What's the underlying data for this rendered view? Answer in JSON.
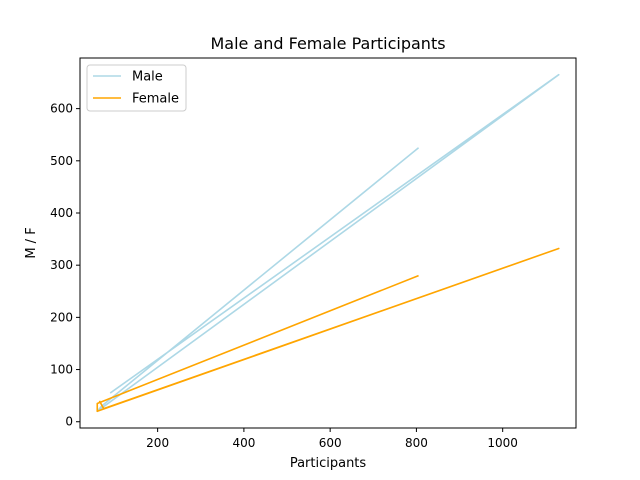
{
  "chart_data": {
    "type": "line",
    "title": "Male and Female Participants",
    "xlabel": "Participants",
    "ylabel": "M / F",
    "xlim": [
      20,
      1170
    ],
    "ylim": [
      -12,
      697
    ],
    "xticks": [
      200,
      400,
      600,
      800,
      1000
    ],
    "yticks": [
      0,
      100,
      200,
      300,
      400,
      500,
      600
    ],
    "grid": false,
    "legend_position": "upper-left",
    "series": [
      {
        "name": "Male",
        "color": "#add8e6",
        "points": [
          [
            805,
            525
          ],
          [
            70,
            30
          ],
          [
            60,
            20
          ],
          [
            1130,
            665
          ],
          [
            90,
            55
          ]
        ]
      },
      {
        "name": "Female",
        "color": "#ffa500",
        "points": [
          [
            805,
            280
          ],
          [
            60,
            35
          ],
          [
            60,
            20
          ],
          [
            1130,
            332
          ],
          [
            75,
            25
          ],
          [
            65,
            40
          ]
        ]
      }
    ]
  }
}
